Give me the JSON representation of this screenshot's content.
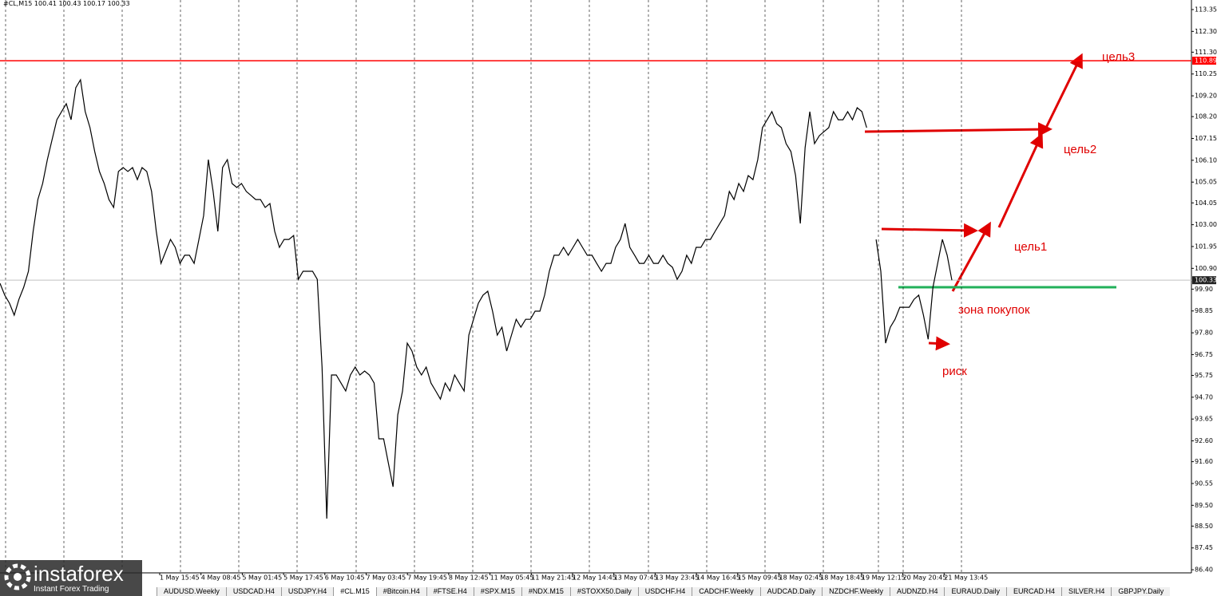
{
  "chart_data": {
    "type": "line",
    "header": {
      "symbol": "#CL,M15",
      "values": [
        100.41,
        100.43,
        100.17,
        100.33
      ]
    },
    "series": [
      {
        "name": "#CL,M15",
        "color": "#000000",
        "values": [
          100.18,
          99.61,
          99.22,
          98.65,
          99.41,
          99.99,
          100.76,
          102.68,
          104.21,
          104.98,
          106.13,
          107.09,
          108.05,
          108.44,
          108.82,
          108.05,
          109.59,
          109.97,
          108.44,
          107.67,
          106.52,
          105.56,
          104.98,
          104.21,
          103.83,
          105.56,
          105.75,
          105.56,
          105.75,
          105.17,
          105.75,
          105.56,
          104.6,
          102.68,
          101.14,
          101.72,
          102.29,
          101.91,
          101.14,
          101.53,
          101.53,
          101.14,
          102.29,
          103.44,
          106.13,
          104.6,
          102.68,
          105.75,
          106.13,
          104.98,
          104.79,
          104.98,
          104.6,
          104.41,
          104.21,
          104.21,
          103.83,
          104.02,
          102.68,
          101.91,
          102.29,
          102.29,
          102.48,
          100.37,
          100.76,
          100.76,
          100.76,
          100.37,
          96.15,
          88.86,
          95.77,
          95.77,
          95.38,
          95.0,
          95.77,
          96.15,
          95.77,
          95.96,
          95.77,
          95.38,
          92.7,
          92.7,
          91.54,
          90.39,
          93.85,
          95.0,
          97.3,
          96.92,
          96.15,
          95.77,
          96.15,
          95.38,
          95.0,
          94.61,
          95.38,
          95.0,
          95.77,
          95.38,
          95.0,
          97.69,
          98.45,
          99.22,
          99.61,
          99.8,
          98.84,
          97.69,
          98.07,
          96.92,
          97.69,
          98.45,
          98.07,
          98.45,
          98.45,
          98.84,
          98.84,
          99.61,
          100.76,
          101.53,
          101.53,
          101.91,
          101.53,
          101.91,
          102.29,
          101.91,
          101.53,
          101.53,
          101.14,
          100.76,
          101.14,
          101.14,
          101.91,
          102.29,
          103.06,
          101.91,
          101.53,
          101.14,
          101.14,
          101.53,
          101.14,
          101.14,
          101.53,
          101.14,
          100.95,
          100.37,
          100.76,
          101.53,
          101.14,
          101.91,
          101.91,
          102.29,
          102.29,
          102.68,
          103.06,
          103.44,
          104.6,
          104.21,
          104.98,
          104.6,
          105.36,
          105.17,
          106.13,
          107.67,
          108.05,
          108.44,
          107.86,
          107.67,
          106.9,
          106.52,
          105.36,
          103.06,
          106.71,
          108.44,
          106.9,
          107.28,
          107.48,
          107.67,
          108.44,
          108.05,
          108.05,
          108.44,
          108.05,
          108.63,
          108.44,
          107.67,
          null,
          102.29,
          100.76,
          97.3,
          98.07,
          98.45,
          99.03,
          99.03,
          99.03,
          99.41,
          99.61,
          98.65,
          97.49,
          99.99,
          101.14,
          102.29,
          101.53,
          100.33
        ]
      }
    ],
    "ylim": [
      86.25,
      113.81
    ],
    "yticks": [
      113.35,
      {
        "value": 112.3,
        "label": "112.30"
      },
      {
        "value": 111.3,
        "label": "111.30"
      },
      110.25,
      {
        "value": 109.2,
        "label": "109.20"
      },
      {
        "value": 108.2,
        "label": "108.20"
      },
      107.15,
      {
        "value": 106.1,
        "label": "106.10"
      },
      105.05,
      104.05,
      {
        "value": 103,
        "label": "103.00"
      },
      101.95,
      {
        "value": 100.9,
        "label": "100.90"
      },
      {
        "value": 99.9,
        "label": "99.90"
      },
      98.85,
      {
        "value": 97.8,
        "label": "97.80"
      },
      96.75,
      95.75,
      {
        "value": 94.7,
        "label": "94.70"
      },
      93.65,
      {
        "value": 92.6,
        "label": "92.60"
      },
      {
        "value": 91.6,
        "label": "91.60"
      },
      90.55,
      {
        "value": 89.5,
        "label": "89.50"
      },
      {
        "value": 88.5,
        "label": "88.50"
      },
      87.45,
      {
        "value": 86.4,
        "label": "86.40"
      }
    ],
    "time_labels": [
      "1 May 15:45",
      "4 May 08:45",
      "5 May 01:45",
      "5 May 17:45",
      "6 May 10:45",
      "7 May 03:45",
      "7 May 19:45",
      "8 May 12:45",
      "11 May 05:45",
      "11 May 21:45",
      "12 May 14:45",
      "13 May 07:45",
      "13 May 23:45",
      "14 May 16:45",
      "15 May 09:45",
      "18 May 02:45",
      "18 May 18:45",
      "19 May 12:15",
      "20 May 20:45",
      "21 May 13:45"
    ],
    "levels": [
      {
        "value": 110.89,
        "color": "#ff0000"
      },
      {
        "value": 100.33,
        "color": "#c0c0c0"
      }
    ],
    "annotations": [
      "цель3",
      "цель2",
      "цель1",
      "зона покупок",
      "риск"
    ]
  },
  "tabs": [
    "AUDUSD.Weekly",
    "USDCAD.H4",
    "USDJPY.H4",
    "#CL.M15",
    "#Bitcoin.H4",
    "#FTSE.H4",
    "#SPX.M15",
    "#NDX.M15",
    "#STOXX50.Daily",
    "USDCHF.H4",
    "CADCHF.Weekly",
    "AUDCAD.Daily",
    "NZDCHF.Weekly",
    "AUDNZD.H4",
    "EURAUD.Daily",
    "EURCAD.H4",
    "SILVER.H4",
    "GBPJPY.Daily"
  ],
  "active_tab": 3,
  "logo": {
    "name": "instaforex",
    "tagline": "Instant Forex Trading"
  }
}
